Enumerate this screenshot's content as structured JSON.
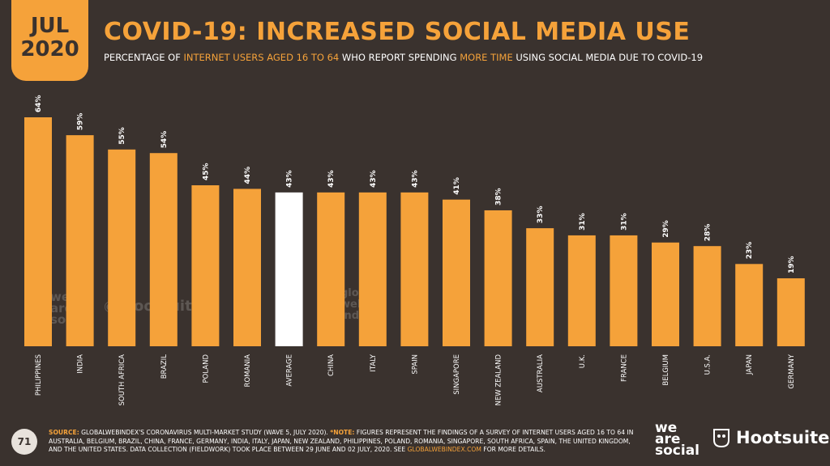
{
  "header": {
    "month": "JUL",
    "year": "2020",
    "title": "COVID-19: INCREASED SOCIAL MEDIA USE",
    "subtitle_parts": [
      "PERCENTAGE OF ",
      "INTERNET USERS AGED 16 TO 64",
      " WHO REPORT SPENDING ",
      "MORE TIME",
      " USING SOCIAL MEDIA DUE TO COVID-19"
    ]
  },
  "chart_data": {
    "type": "bar",
    "categories": [
      "PHILIPPINES",
      "INDIA",
      "SOUTH AFRICA",
      "BRAZIL",
      "POLAND",
      "ROMANIA",
      "AVERAGE",
      "CHINA",
      "ITALY",
      "SPAIN",
      "SINGAPORE",
      "NEW ZEALAND",
      "AUSTRALIA",
      "U.K.",
      "FRANCE",
      "BELGIUM",
      "U.S.A.",
      "JAPAN",
      "GERMANY"
    ],
    "values": [
      64,
      59,
      55,
      54,
      45,
      44,
      43,
      43,
      43,
      43,
      41,
      38,
      33,
      31,
      31,
      29,
      28,
      23,
      19
    ],
    "value_labels": [
      "64%",
      "59%",
      "55%",
      "54%",
      "45%",
      "44%",
      "43%",
      "43%",
      "43%",
      "43%",
      "41%",
      "38%",
      "33%",
      "31%",
      "31%",
      "29%",
      "28%",
      "23%",
      "19%"
    ],
    "highlight_category": "AVERAGE",
    "ylim": [
      0,
      64
    ],
    "grid": false,
    "colors": {
      "bar": "#f5a23a",
      "highlight": "#ffffff",
      "label": "#ffffff"
    }
  },
  "watermarks": {
    "we_are_social": [
      "we",
      "are",
      "social"
    ],
    "hootsuite": "Hootsuite",
    "global_web_index": [
      "global",
      "web",
      "index"
    ]
  },
  "footer": {
    "page_number": "71",
    "source_label": "SOURCE:",
    "source_text": " GLOBALWEBINDEX'S CORONAVIRUS MULTI-MARKET STUDY (WAVE 5, JULY 2020). ",
    "note_label": "*NOTE:",
    "note_text": " FIGURES REPRESENT THE FINDINGS OF A SURVEY OF INTERNET USERS AGED 16 TO 64 IN AUSTRALIA, BELGIUM, BRAZIL, CHINA, FRANCE, GERMANY, INDIA, ITALY, JAPAN, NEW ZEALAND, PHILIPPINES, POLAND, ROMANIA, SINGAPORE, SOUTH AFRICA, SPAIN, THE UNITED KINGDOM, AND THE UNITED STATES. DATA COLLECTION (FIELDWORK) TOOK PLACE BETWEEN 29 JUNE AND 02 JULY, 2020. SEE ",
    "link_text": "GLOBALWEBINDEX.COM",
    "tail_text": " FOR MORE DETAILS."
  },
  "logos": {
    "we_are_social": [
      "we",
      "are",
      "social"
    ],
    "hootsuite": "Hootsuite",
    "hootsuite_mark": "®",
    "hootsuite_icon": "owl-icon"
  },
  "colors": {
    "background": "#3a322e",
    "accent": "#f5a23a",
    "text": "#ffffff"
  }
}
